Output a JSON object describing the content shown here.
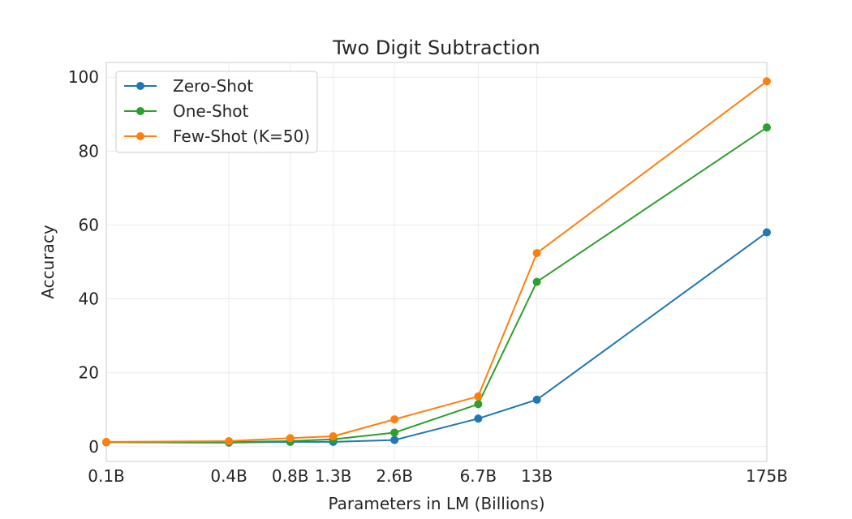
{
  "chart_data": {
    "type": "line",
    "title": "Two Digit Subtraction",
    "xlabel": "Parameters in LM (Billions)",
    "ylabel": "Accuracy",
    "x_scale": "log",
    "x": [
      0.1,
      0.4,
      0.8,
      1.3,
      2.6,
      6.7,
      13,
      175
    ],
    "x_tick_labels": [
      "0.1B",
      "0.4B",
      "0.8B",
      "1.3B",
      "2.6B",
      "6.7B",
      "13B",
      "175B"
    ],
    "y_ticks": [
      0,
      20,
      40,
      60,
      80,
      100
    ],
    "y_tick_labels": [
      "0",
      "20",
      "40",
      "60",
      "80",
      "100"
    ],
    "ylim": [
      -4,
      104
    ],
    "grid": true,
    "legend_position": "top-left",
    "series": [
      {
        "name": "Zero-Shot",
        "color": "#1f77b4",
        "values": [
          1.2,
          1.1,
          1.3,
          1.3,
          1.8,
          7.6,
          12.7,
          58.0
        ]
      },
      {
        "name": "One-Shot",
        "color": "#2ca02c",
        "values": [
          1.2,
          1.2,
          1.5,
          2.0,
          3.8,
          11.5,
          44.6,
          86.4
        ]
      },
      {
        "name": "Few-Shot (K=50)",
        "color": "#ff7f0e",
        "values": [
          1.3,
          1.5,
          2.3,
          2.8,
          7.4,
          13.6,
          52.4,
          98.9
        ]
      }
    ]
  }
}
